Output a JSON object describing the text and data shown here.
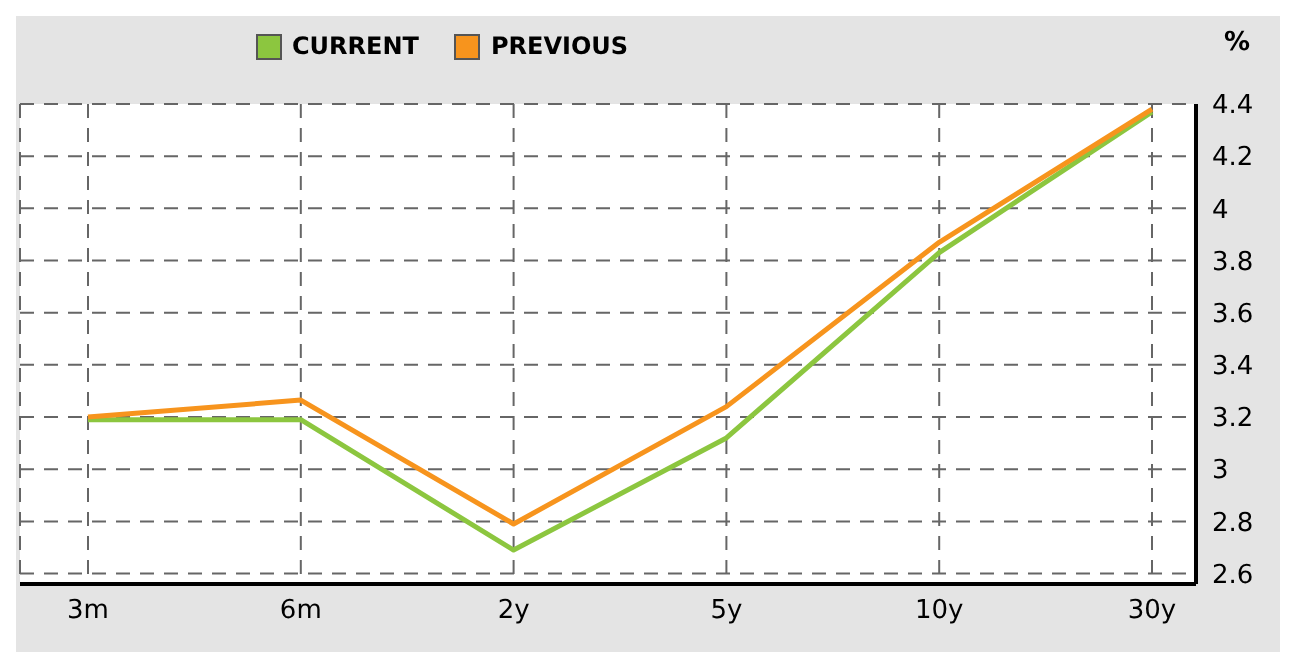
{
  "chart_data": {
    "type": "line",
    "ylabel": "%",
    "categories": [
      "3m",
      "6m",
      "2y",
      "5y",
      "10y",
      "30y"
    ],
    "series": [
      {
        "name": "CURRENT",
        "color": "#8cc63f",
        "values": [
          3.19,
          3.19,
          2.69,
          3.12,
          3.83,
          4.37
        ]
      },
      {
        "name": "PREVIOUS",
        "color": "#f7941d",
        "values": [
          3.2,
          3.265,
          2.79,
          3.24,
          3.87,
          4.38
        ]
      }
    ],
    "ylim": [
      2.56,
      4.4
    ],
    "yticks": [
      2.6,
      2.8,
      3,
      3.2,
      3.4,
      3.6,
      3.8,
      4,
      4.2,
      4.4
    ],
    "grid": true,
    "legend": "top",
    "marker": "none",
    "line_style": "solid"
  }
}
